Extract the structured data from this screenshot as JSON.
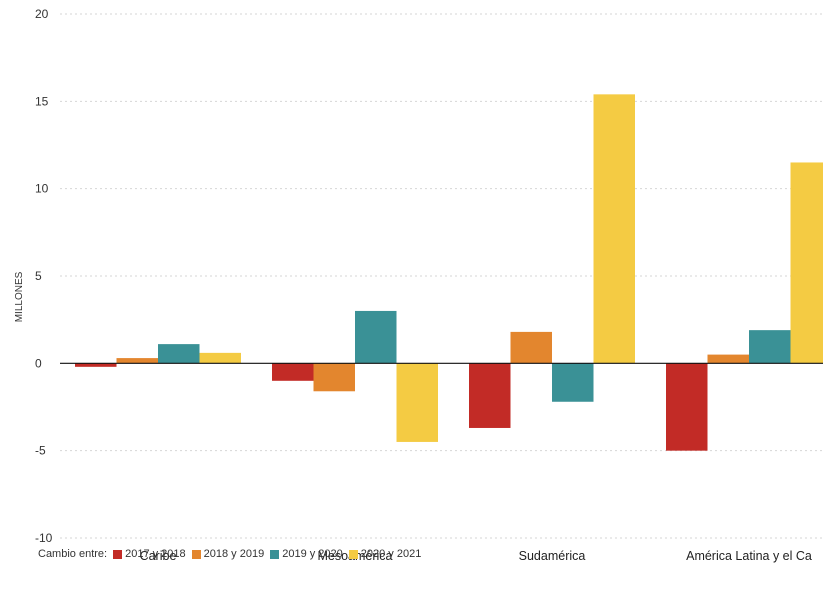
{
  "chart_data": {
    "type": "bar",
    "ylabel": "MILLONES",
    "ylim": [
      -10,
      20
    ],
    "yticks": [
      -10,
      -5,
      0,
      5,
      10,
      15,
      20
    ],
    "ytick_labels": [
      "-10",
      "-5",
      "0",
      "5",
      "10",
      "15",
      "20"
    ],
    "grid": true,
    "categories": [
      "Caribe",
      "Mesoamérica",
      "Sudamérica",
      "América Latina y el Ca"
    ],
    "series": [
      {
        "name": "2017 y 2018",
        "color": "#c22b26",
        "values": [
          -0.2,
          -1.0,
          -3.7,
          -5.0
        ]
      },
      {
        "name": "2018 y 2019",
        "color": "#e3862e",
        "values": [
          0.3,
          -1.6,
          1.8,
          0.5
        ]
      },
      {
        "name": "2019 y 2020",
        "color": "#3a9196",
        "values": [
          1.1,
          3.0,
          -2.2,
          1.9
        ]
      },
      {
        "name": "2020 y 2021",
        "color": "#f4cb43",
        "values": [
          0.6,
          -4.5,
          15.4,
          11.5
        ]
      }
    ],
    "legend_title": "Cambio entre:",
    "legend_position": "bottom-left"
  }
}
